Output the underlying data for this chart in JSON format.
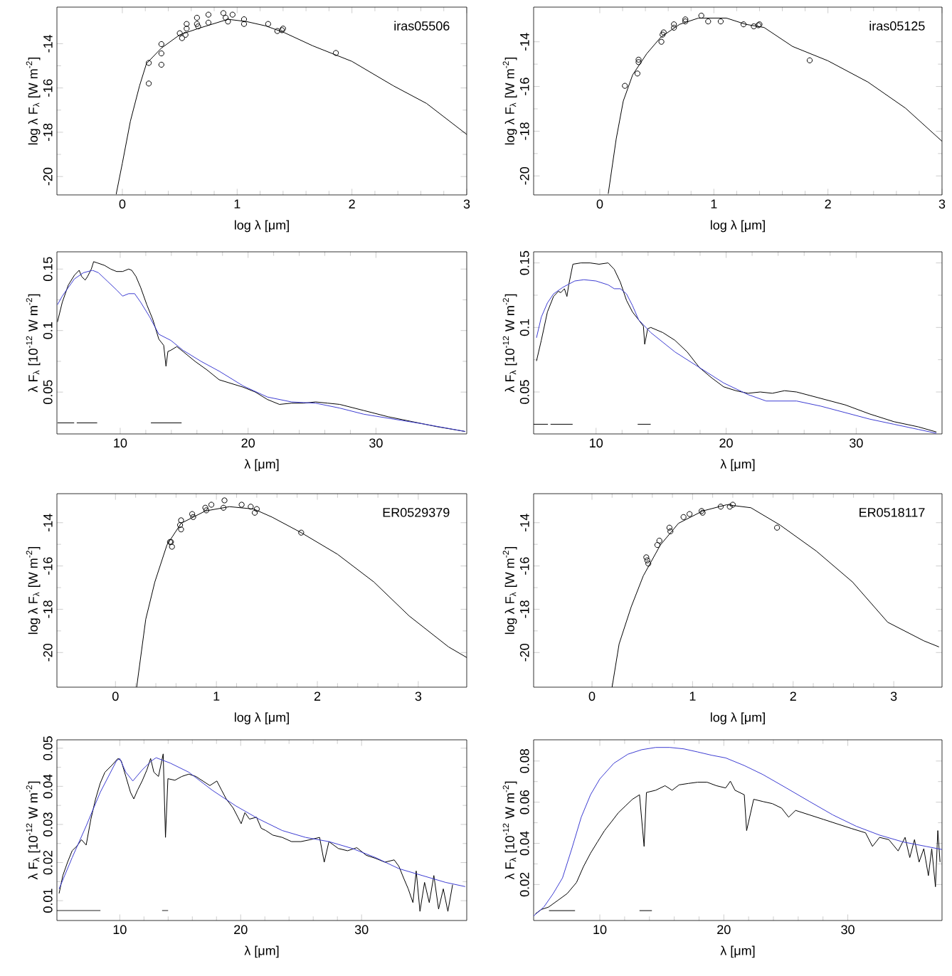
{
  "chart_data": [
    {
      "type": "line",
      "xlabel": "log λ [μm]",
      "ylabel": "log λ F$_{λ}$ [W m$^{-2}$]",
      "annotations": [
        "iras05506"
      ],
      "xlim": [
        -0.57,
        3
      ],
      "ylim": [
        -20.83,
        -12.35
      ],
      "xticks": [
        0,
        1,
        2,
        3
      ],
      "yticks": [
        -20,
        -18,
        -16,
        -14
      ],
      "series": [
        {
          "type": "line",
          "color": "#000000",
          "x": [
            -0.054,
            0,
            0.07,
            0.15,
            0.21,
            0.34,
            0.5,
            0.67,
            0.92,
            1.08,
            1.25,
            1.41,
            1.66,
            2.0,
            2.36,
            2.65,
            3.0
          ],
          "values": [
            -20.8,
            -19.4,
            -17.5,
            -15.9,
            -14.9,
            -14.2,
            -13.6,
            -13.3,
            -12.9,
            -13.0,
            -13.2,
            -13.5,
            -14.1,
            -14.8,
            -15.9,
            -16.7,
            -18.1
          ]
        },
        {
          "type": "scatter",
          "marker": "circle",
          "color": "#000000",
          "x": [
            0.23,
            0.23,
            0.34,
            0.34,
            0.34,
            0.5,
            0.52,
            0.55,
            0.56,
            0.56,
            0.65,
            0.65,
            0.66,
            0.75,
            0.75,
            0.88,
            0.9,
            0.92,
            0.96,
            1.06,
            1.06,
            1.27,
            1.35,
            1.39,
            1.4,
            1.86
          ],
          "values": [
            -14.87,
            -15.8,
            -14.02,
            -14.44,
            -14.95,
            -13.53,
            -13.75,
            -13.6,
            -13.11,
            -13.32,
            -12.83,
            -13.11,
            -13.22,
            -12.69,
            -13.05,
            -12.62,
            -12.83,
            -13.0,
            -12.69,
            -12.9,
            -13.11,
            -13.11,
            -13.43,
            -13.39,
            -13.32,
            -14.42
          ]
        }
      ]
    },
    {
      "type": "line",
      "xlabel": "log λ [μm]",
      "ylabel": "log λ F$_{λ}$ [W m$^{-2}$]",
      "annotations": [
        "iras05125"
      ],
      "xlim": [
        -0.58,
        3
      ],
      "ylim": [
        -20.85,
        -12.45
      ],
      "xticks": [
        0,
        1,
        2,
        3
      ],
      "yticks": [
        -20,
        -18,
        -16,
        -14
      ],
      "series": [
        {
          "type": "line",
          "color": "#000000",
          "x": [
            0.074,
            0.144,
            0.206,
            0.288,
            0.412,
            0.536,
            0.7,
            0.865,
            1.11,
            1.28,
            1.44,
            1.69,
            2.0,
            2.35,
            2.68,
            3.0
          ],
          "values": [
            -20.8,
            -18.34,
            -16.65,
            -15.48,
            -14.53,
            -13.79,
            -13.22,
            -12.94,
            -12.94,
            -13.22,
            -13.36,
            -14.21,
            -14.85,
            -15.8,
            -16.97,
            -18.45
          ]
        },
        {
          "type": "scatter",
          "marker": "circle",
          "color": "#000000",
          "x": [
            0.22,
            0.33,
            0.34,
            0.34,
            0.54,
            0.55,
            0.56,
            0.65,
            0.65,
            0.75,
            0.75,
            0.89,
            0.95,
            1.06,
            1.26,
            1.35,
            1.39,
            1.4,
            1.84
          ],
          "values": [
            -15.97,
            -15.42,
            -14.91,
            -14.8,
            -14.0,
            -13.68,
            -13.58,
            -13.37,
            -13.22,
            -13.0,
            -13.09,
            -12.83,
            -13.09,
            -13.09,
            -13.22,
            -13.31,
            -13.26,
            -13.22,
            -14.83
          ]
        }
      ]
    },
    {
      "type": "line",
      "xlabel": "λ [μm]",
      "ylabel": "λ F$_{λ}$ [10$^{-12}$ W m$^{-2}$]",
      "xlim": [
        5.05,
        37.1
      ],
      "ylim": [
        0.016,
        0.164
      ],
      "xticks": [
        10,
        20,
        30
      ],
      "yticks": [
        0.05,
        0.1,
        0.15
      ],
      "series": [
        {
          "type": "line",
          "color": "#000000",
          "x": [
            5.09,
            5.47,
            5.94,
            6.42,
            6.79,
            6.98,
            7.26,
            7.45,
            7.74,
            7.92,
            8.21,
            8.77,
            9.25,
            9.72,
            10.19,
            10.66,
            10.9,
            11.23,
            11.6,
            12.08,
            12.55,
            13.02,
            13.4,
            13.58,
            13.73,
            13.96,
            14.43,
            14.91,
            15.85,
            16.79,
            17.74,
            18.68,
            19.62,
            20.57,
            21.51,
            22.45,
            23.4,
            24.34,
            25.28,
            26.23,
            27.17,
            29.06,
            30.94,
            32.83,
            34.72,
            36.98
          ],
          "values": [
            0.107,
            0.123,
            0.137,
            0.145,
            0.149,
            0.144,
            0.141,
            0.144,
            0.15,
            0.156,
            0.155,
            0.153,
            0.15,
            0.148,
            0.148,
            0.15,
            0.149,
            0.144,
            0.135,
            0.121,
            0.109,
            0.093,
            0.088,
            0.071,
            0.083,
            0.084,
            0.087,
            0.083,
            0.075,
            0.068,
            0.06,
            0.057,
            0.054,
            0.05,
            0.044,
            0.04,
            0.041,
            0.041,
            0.042,
            0.041,
            0.04,
            0.035,
            0.03,
            0.026,
            0.022,
            0.018
          ]
        },
        {
          "type": "line",
          "color": "#3c3cd2",
          "x": [
            5.09,
            5.47,
            5.94,
            6.42,
            7.12,
            7.83,
            8.3,
            9.01,
            9.72,
            10.19,
            10.66,
            11.13,
            11.6,
            12.31,
            13.02,
            13.96,
            14.91,
            16.32,
            17.74,
            19.62,
            21.51,
            23.4,
            25.28,
            27.17,
            29.06,
            31.42,
            33.77,
            36.98
          ],
          "values": [
            0.121,
            0.128,
            0.135,
            0.142,
            0.147,
            0.149,
            0.147,
            0.14,
            0.133,
            0.128,
            0.13,
            0.13,
            0.123,
            0.111,
            0.097,
            0.092,
            0.084,
            0.075,
            0.067,
            0.055,
            0.046,
            0.042,
            0.041,
            0.037,
            0.032,
            0.028,
            0.024,
            0.018
          ]
        },
        {
          "type": "line",
          "color": "#000000",
          "x": [
            5.1,
            6.4,
            6.5,
            6.6,
            8.2,
            10,
            12.4,
            14.8
          ],
          "values": [
            0.025,
            0.025,
            null,
            0.025,
            0.025,
            null,
            0.025,
            0.025
          ]
        }
      ]
    },
    {
      "type": "line",
      "xlabel": "λ [μm]",
      "ylabel": "λ F$_{λ}$ [10$^{-12}$ W m$^{-2}$]",
      "xlim": [
        5.2,
        36.6
      ],
      "ylim": [
        0.0175,
        0.1586
      ],
      "xticks": [
        10,
        20,
        30
      ],
      "yticks": [
        0.05,
        0.1,
        0.15
      ],
      "series": [
        {
          "type": "line",
          "color": "#000000",
          "x": [
            5.42,
            5.79,
            6.26,
            6.73,
            7.1,
            7.29,
            7.57,
            7.76,
            7.9,
            8.22,
            8.83,
            9.53,
            10.23,
            10.93,
            11.4,
            11.87,
            12.34,
            12.8,
            13.27,
            13.64,
            13.74,
            13.97,
            14.21,
            15.14,
            16.07,
            17.01,
            17.94,
            18.88,
            19.81,
            20.75,
            21.68,
            22.62,
            23.55,
            24.49,
            25.42,
            27.29,
            29.16,
            31.03,
            32.9,
            34.77,
            36.17
          ],
          "values": [
            0.074,
            0.09,
            0.112,
            0.124,
            0.128,
            0.127,
            0.13,
            0.124,
            0.133,
            0.149,
            0.15,
            0.15,
            0.149,
            0.15,
            0.145,
            0.135,
            0.121,
            0.112,
            0.106,
            0.101,
            0.087,
            0.099,
            0.1,
            0.096,
            0.09,
            0.081,
            0.069,
            0.061,
            0.054,
            0.051,
            0.049,
            0.05,
            0.049,
            0.051,
            0.05,
            0.045,
            0.04,
            0.033,
            0.027,
            0.023,
            0.019
          ]
        },
        {
          "type": "line",
          "color": "#3c3cd2",
          "x": [
            5.42,
            5.79,
            6.26,
            6.73,
            7.43,
            8.36,
            9.07,
            10.0,
            10.93,
            11.4,
            11.87,
            12.34,
            12.8,
            13.27,
            14.21,
            16.07,
            17.94,
            19.81,
            21.68,
            23.08,
            24.49,
            25.42,
            27.29,
            29.16,
            31.03,
            32.9,
            34.77,
            36.17
          ],
          "values": [
            0.092,
            0.108,
            0.119,
            0.126,
            0.131,
            0.136,
            0.137,
            0.136,
            0.133,
            0.13,
            0.13,
            0.126,
            0.117,
            0.106,
            0.096,
            0.081,
            0.069,
            0.057,
            0.048,
            0.043,
            0.043,
            0.043,
            0.039,
            0.034,
            0.029,
            0.025,
            0.021,
            0.018
          ]
        },
        {
          "type": "line",
          "color": "#000000",
          "x": [
            5.2,
            6.3,
            6.4,
            6.5,
            8.2,
            10,
            13.2,
            14.2
          ],
          "values": [
            0.025,
            0.025,
            null,
            0.025,
            0.025,
            null,
            0.025,
            0.025
          ]
        }
      ]
    },
    {
      "type": "line",
      "xlabel": "log λ [μm]",
      "ylabel": "log λ F$_{λ}$ [W m$^{-2}$]",
      "annotations": [
        "ER0529379"
      ],
      "xlim": [
        -0.58,
        3.48
      ],
      "ylim": [
        -21.6,
        -12.66
      ],
      "xticks": [
        0,
        1,
        2,
        3
      ],
      "yticks": [
        -20,
        -18,
        -16,
        -14
      ],
      "series": [
        {
          "type": "line",
          "color": "#000000",
          "x": [
            0.21,
            0.3,
            0.39,
            0.51,
            0.65,
            0.89,
            1.13,
            1.37,
            1.55,
            1.84,
            2.2,
            2.56,
            2.91,
            3.3,
            3.48
          ],
          "values": [
            -21.6,
            -18.46,
            -16.74,
            -15.03,
            -14.03,
            -13.46,
            -13.26,
            -13.37,
            -13.74,
            -14.46,
            -15.46,
            -16.74,
            -18.31,
            -19.74,
            -20.23
          ]
        },
        {
          "type": "scatter",
          "marker": "circle",
          "color": "#000000",
          "x": [
            0.54,
            0.55,
            0.56,
            0.64,
            0.65,
            0.65,
            0.76,
            0.77,
            0.89,
            0.9,
            0.95,
            1.07,
            1.08,
            1.25,
            1.34,
            1.38,
            1.4,
            1.84
          ],
          "values": [
            -14.89,
            -14.89,
            -15.11,
            -14.11,
            -14.31,
            -13.89,
            -13.6,
            -13.74,
            -13.31,
            -13.43,
            -13.17,
            -13.31,
            -12.97,
            -13.17,
            -13.26,
            -13.54,
            -13.37,
            -14.46
          ]
        }
      ]
    },
    {
      "type": "line",
      "xlabel": "log λ [μm]",
      "ylabel": "log λ F$_{λ}$ [W m$^{-2}$]",
      "annotations": [
        "ER0518117"
      ],
      "xlim": [
        -0.58,
        3.48
      ],
      "ylim": [
        -21.6,
        -12.66
      ],
      "xticks": [
        0,
        1,
        2,
        3
      ],
      "yticks": [
        -20,
        -18,
        -16,
        -14
      ],
      "series": [
        {
          "type": "line",
          "color": "#000000",
          "x": [
            0.2,
            0.27,
            0.39,
            0.51,
            0.68,
            0.86,
            1.1,
            1.34,
            1.58,
            1.87,
            2.23,
            2.59,
            2.94,
            3.3,
            3.45
          ],
          "values": [
            -21.6,
            -19.6,
            -17.89,
            -16.46,
            -15.03,
            -14.03,
            -13.46,
            -13.17,
            -13.31,
            -14.11,
            -15.31,
            -16.74,
            -18.6,
            -19.46,
            -19.74
          ]
        },
        {
          "type": "scatter",
          "marker": "circle",
          "color": "#000000",
          "x": [
            0.54,
            0.55,
            0.56,
            0.65,
            0.67,
            0.77,
            0.78,
            0.91,
            0.97,
            1.09,
            1.1,
            1.28,
            1.37,
            1.4,
            1.84
          ],
          "values": [
            -15.6,
            -15.74,
            -15.89,
            -15.03,
            -14.83,
            -14.23,
            -14.4,
            -13.74,
            -13.6,
            -13.46,
            -13.54,
            -13.26,
            -13.26,
            -13.17,
            -14.23
          ]
        }
      ]
    },
    {
      "type": "line",
      "xlabel": "λ [μm]",
      "ylabel": "λ F$_{λ}$ [10$^{-12}$ W m$^{-2}$]",
      "xlim": [
        4.8,
        38.7
      ],
      "ylim": [
        0.0048,
        0.0522
      ],
      "xticks": [
        10,
        20,
        30
      ],
      "yticks": [
        0.01,
        0.02,
        0.03,
        0.04,
        0.05
      ],
      "series": [
        {
          "type": "line",
          "color": "#000000",
          "x": [
            4.98,
            5.29,
            5.68,
            6.06,
            6.45,
            6.83,
            7.22,
            7.61,
            8.0,
            8.38,
            8.77,
            9.34,
            9.85,
            10.12,
            10.5,
            10.89,
            11.16,
            11.47,
            11.85,
            12.24,
            12.55,
            12.82,
            13.2,
            13.59,
            13.78,
            13.98,
            14.56,
            15.14,
            15.71,
            16.29,
            16.87,
            17.45,
            18.03,
            18.42,
            18.8,
            19.38,
            19.77,
            20.04,
            20.35,
            20.73,
            21.31,
            21.7,
            22.08,
            22.66,
            23.44,
            24.21,
            24.98,
            25.75,
            26.53,
            26.91,
            27.3,
            28.07,
            28.84,
            29.61,
            30.39,
            31.16,
            31.93,
            32.7,
            33.09,
            33.47,
            33.86,
            34.25,
            34.52,
            34.83,
            35.21,
            35.6,
            35.98,
            36.37,
            36.76,
            37.14,
            37.53
          ],
          "values": [
            0.0119,
            0.0166,
            0.0201,
            0.0231,
            0.0243,
            0.026,
            0.0246,
            0.0314,
            0.0367,
            0.0408,
            0.0437,
            0.0455,
            0.0473,
            0.0467,
            0.0426,
            0.0384,
            0.0367,
            0.039,
            0.0414,
            0.0443,
            0.0473,
            0.0437,
            0.0426,
            0.0485,
            0.0266,
            0.042,
            0.0416,
            0.0426,
            0.0432,
            0.0426,
            0.0414,
            0.0402,
            0.0414,
            0.039,
            0.0367,
            0.0343,
            0.0319,
            0.0302,
            0.0331,
            0.0314,
            0.0319,
            0.029,
            0.0284,
            0.0272,
            0.0266,
            0.0255,
            0.0255,
            0.026,
            0.0266,
            0.0201,
            0.0255,
            0.0237,
            0.0231,
            0.0239,
            0.0219,
            0.0211,
            0.0201,
            0.0207,
            0.019,
            0.016,
            0.0131,
            0.0095,
            0.0178,
            0.0072,
            0.0148,
            0.0095,
            0.0166,
            0.0078,
            0.0131,
            0.0072,
            0.0142
          ]
        },
        {
          "type": "line",
          "color": "#3c3cd2",
          "x": [
            4.98,
            6.06,
            7.22,
            8.38,
            9.73,
            10.0,
            10.5,
            11.08,
            11.85,
            12.63,
            13.01,
            14.17,
            15.71,
            17.64,
            19.58,
            21.51,
            23.44,
            25.37,
            27.3,
            29.23,
            31.16,
            33.09,
            35.02,
            36.95,
            38.57
          ],
          "values": [
            0.0131,
            0.0213,
            0.0296,
            0.0384,
            0.0467,
            0.0473,
            0.0437,
            0.0414,
            0.0443,
            0.0467,
            0.0475,
            0.0461,
            0.0437,
            0.039,
            0.0349,
            0.0314,
            0.0284,
            0.0266,
            0.0255,
            0.0237,
            0.0213,
            0.0184,
            0.0166,
            0.0148,
            0.0137
          ]
        },
        {
          "type": "line",
          "color": "#000000",
          "x": [
            4.8,
            8.4,
            10,
            13.5,
            14.0
          ],
          "values": [
            0.0074,
            0.0074,
            null,
            0.0074,
            0.0074
          ]
        }
      ]
    },
    {
      "type": "line",
      "xlabel": "λ [μm]",
      "ylabel": "λ F$_{λ}$ [10$^{-12}$ W m$^{-2}$]",
      "xlim": [
        4.66,
        37.6
      ],
      "ylim": [
        0.0025,
        0.0903
      ],
      "xticks": [
        10,
        20,
        30
      ],
      "yticks": [
        0.02,
        0.04,
        0.06,
        0.08
      ],
      "series": [
        {
          "type": "line",
          "color": "#000000",
          "x": [
            4.81,
            5.3,
            5.86,
            6.62,
            7.37,
            8.12,
            8.68,
            9.25,
            9.81,
            10.38,
            10.94,
            11.5,
            12.07,
            12.63,
            13.2,
            13.57,
            13.76,
            14.51,
            15.26,
            15.83,
            16.39,
            17.14,
            17.89,
            18.65,
            19.4,
            20.15,
            20.53,
            20.9,
            21.65,
            21.84,
            22.41,
            23.16,
            23.91,
            24.66,
            25.23,
            25.79,
            26.92,
            28.05,
            29.17,
            30.3,
            31.43,
            31.99,
            32.56,
            33.31,
            34.06,
            34.62,
            35.0,
            35.38,
            35.75,
            36.13,
            36.5,
            36.77,
            37.07,
            37.26,
            37.44
          ],
          "values": [
            0.0058,
            0.0079,
            0.009,
            0.0123,
            0.0156,
            0.021,
            0.0287,
            0.0352,
            0.0407,
            0.0462,
            0.0505,
            0.0549,
            0.0582,
            0.0614,
            0.0636,
            0.0385,
            0.0647,
            0.0658,
            0.068,
            0.0658,
            0.0684,
            0.0691,
            0.0697,
            0.0697,
            0.068,
            0.0669,
            0.0702,
            0.0658,
            0.0636,
            0.0462,
            0.0614,
            0.0603,
            0.0593,
            0.0571,
            0.0527,
            0.056,
            0.0538,
            0.0516,
            0.0494,
            0.0472,
            0.0451,
            0.0385,
            0.0429,
            0.0418,
            0.0363,
            0.0429,
            0.0331,
            0.0418,
            0.0309,
            0.0374,
            0.0243,
            0.0374,
            0.0189,
            0.0462,
            0.0309
          ]
        },
        {
          "type": "line",
          "color": "#3c3cd2",
          "x": [
            4.66,
            5.49,
            6.24,
            6.99,
            7.74,
            8.5,
            9.25,
            10.0,
            11.13,
            12.26,
            13.38,
            14.51,
            15.64,
            16.77,
            17.89,
            19.02,
            20.15,
            21.65,
            23.16,
            25.04,
            26.92,
            28.8,
            30.68,
            32.56,
            34.44,
            36.32,
            37.6
          ],
          "values": [
            0.0047,
            0.0091,
            0.0156,
            0.0232,
            0.0374,
            0.0527,
            0.0636,
            0.0713,
            0.0789,
            0.0833,
            0.0855,
            0.0866,
            0.0866,
            0.0859,
            0.0844,
            0.0828,
            0.0815,
            0.0778,
            0.0734,
            0.0669,
            0.0603,
            0.0538,
            0.0483,
            0.044,
            0.0407,
            0.0385,
            0.037
          ]
        },
        {
          "type": "line",
          "color": "#000000",
          "x": [
            5.9,
            8.0,
            10,
            13.2,
            14.2
          ],
          "values": [
            0.0073,
            0.0073,
            null,
            0.0073,
            0.0073
          ]
        }
      ]
    }
  ]
}
